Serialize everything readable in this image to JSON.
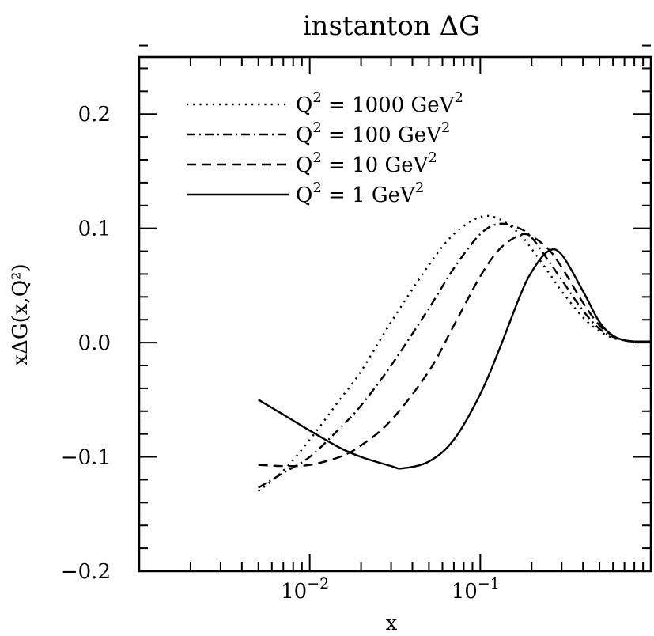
{
  "chart_data": {
    "type": "line",
    "title": "instanton ΔG",
    "xlabel": "x",
    "ylabel": "xΔG(x,Q²)",
    "xscale": "log",
    "xlim": [
      0.001,
      1.0
    ],
    "ylim": [
      -0.2,
      0.25
    ],
    "x_tick_labels": [
      {
        "value": 0.01,
        "base": "10",
        "exp": "−2"
      },
      {
        "value": 0.1,
        "base": "10",
        "exp": "−1"
      }
    ],
    "y_tick_labels": [
      {
        "value": 0.2,
        "label": "0.2"
      },
      {
        "value": 0.1,
        "label": "0.1"
      },
      {
        "value": 0.0,
        "label": "0.0"
      },
      {
        "value": -0.1,
        "label": "−0.1"
      },
      {
        "value": -0.2,
        "label": "−0.2"
      }
    ],
    "legend_position": "top-left",
    "series": [
      {
        "name": "Q² = 1000 GeV²",
        "legend_lead": "Q",
        "legend_mid": " = 1000 GeV",
        "style": "dotted",
        "x": [
          0.005,
          0.007,
          0.01,
          0.015,
          0.02,
          0.03,
          0.05,
          0.07,
          0.1,
          0.13,
          0.17,
          0.2,
          0.25,
          0.3,
          0.4,
          0.5,
          0.6,
          0.7,
          0.8,
          1.0
        ],
        "y": [
          -0.13,
          -0.112,
          -0.085,
          -0.05,
          -0.025,
          0.018,
          0.068,
          0.095,
          0.11,
          0.108,
          0.095,
          0.082,
          0.062,
          0.045,
          0.022,
          0.01,
          0.004,
          0.002,
          0.001,
          0.001
        ]
      },
      {
        "name": "Q² = 100 GeV²",
        "legend_lead": "Q",
        "legend_mid": " = 100 GeV",
        "style": "dashdot",
        "x": [
          0.005,
          0.007,
          0.01,
          0.015,
          0.02,
          0.03,
          0.05,
          0.07,
          0.1,
          0.13,
          0.17,
          0.2,
          0.25,
          0.3,
          0.4,
          0.5,
          0.6,
          0.7,
          0.8,
          1.0
        ],
        "y": [
          -0.127,
          -0.114,
          -0.1,
          -0.075,
          -0.055,
          -0.02,
          0.03,
          0.065,
          0.095,
          0.104,
          0.1,
          0.092,
          0.072,
          0.055,
          0.028,
          0.012,
          0.005,
          0.002,
          0.001,
          0.001
        ]
      },
      {
        "name": "Q² = 10 GeV²",
        "legend_lead": "Q",
        "legend_mid": " = 10 GeV",
        "style": "dashed",
        "x": [
          0.005,
          0.007,
          0.01,
          0.015,
          0.02,
          0.03,
          0.05,
          0.07,
          0.1,
          0.13,
          0.17,
          0.2,
          0.25,
          0.3,
          0.4,
          0.5,
          0.6,
          0.7,
          0.8,
          1.0
        ],
        "y": [
          -0.107,
          -0.108,
          -0.107,
          -0.1,
          -0.09,
          -0.068,
          -0.025,
          0.015,
          0.058,
          0.082,
          0.094,
          0.093,
          0.082,
          0.066,
          0.035,
          0.015,
          0.006,
          0.002,
          0.001,
          0.001
        ]
      },
      {
        "name": "Q² = 1 GeV²",
        "legend_lead": "Q",
        "legend_mid": " = 1 GeV",
        "style": "solid",
        "x": [
          0.005,
          0.007,
          0.01,
          0.015,
          0.02,
          0.03,
          0.035,
          0.05,
          0.07,
          0.1,
          0.13,
          0.17,
          0.2,
          0.25,
          0.3,
          0.4,
          0.5,
          0.6,
          0.7,
          0.8,
          1.0
        ],
        "y": [
          -0.05,
          -0.063,
          -0.077,
          -0.092,
          -0.1,
          -0.108,
          -0.11,
          -0.104,
          -0.085,
          -0.045,
          -0.005,
          0.04,
          0.062,
          0.08,
          0.077,
          0.045,
          0.018,
          0.006,
          0.002,
          0.001,
          0.001
        ]
      }
    ]
  }
}
